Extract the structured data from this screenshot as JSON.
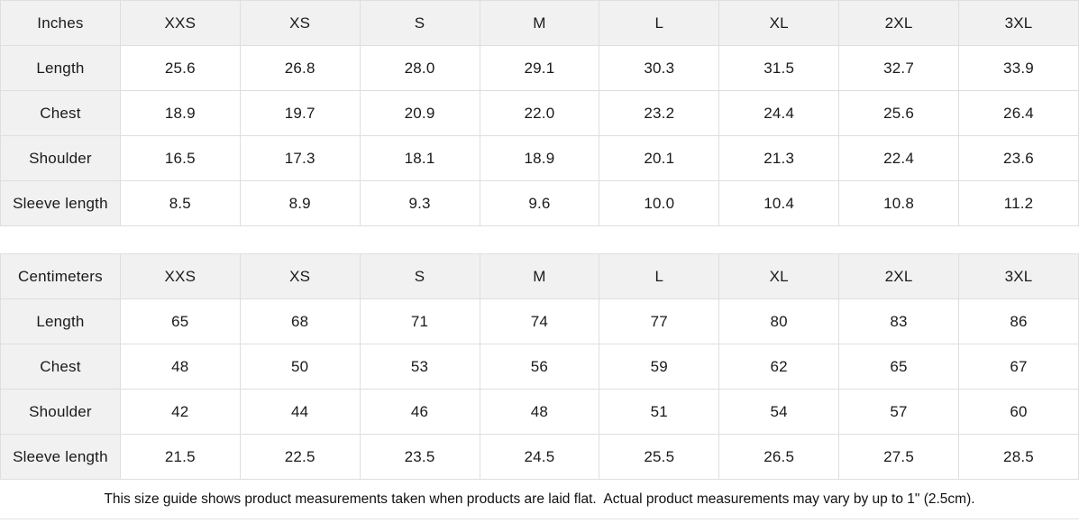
{
  "colors": {
    "header_bg": "#f1f1f1",
    "border": "#dedede",
    "text": "#1a1a1a"
  },
  "tables": [
    {
      "unit_label": "Inches",
      "columns": [
        "XXS",
        "XS",
        "S",
        "M",
        "L",
        "XL",
        "2XL",
        "3XL"
      ],
      "rows": [
        {
          "label": "Length",
          "values": [
            "25.6",
            "26.8",
            "28.0",
            "29.1",
            "30.3",
            "31.5",
            "32.7",
            "33.9"
          ]
        },
        {
          "label": "Chest",
          "values": [
            "18.9",
            "19.7",
            "20.9",
            "22.0",
            "23.2",
            "24.4",
            "25.6",
            "26.4"
          ]
        },
        {
          "label": "Shoulder",
          "values": [
            "16.5",
            "17.3",
            "18.1",
            "18.9",
            "20.1",
            "21.3",
            "22.4",
            "23.6"
          ]
        },
        {
          "label": "Sleeve length",
          "values": [
            "8.5",
            "8.9",
            "9.3",
            "9.6",
            "10.0",
            "10.4",
            "10.8",
            "11.2"
          ]
        }
      ]
    },
    {
      "unit_label": "Centimeters",
      "columns": [
        "XXS",
        "XS",
        "S",
        "M",
        "L",
        "XL",
        "2XL",
        "3XL"
      ],
      "rows": [
        {
          "label": "Length",
          "values": [
            "65",
            "68",
            "71",
            "74",
            "77",
            "80",
            "83",
            "86"
          ]
        },
        {
          "label": "Chest",
          "values": [
            "48",
            "50",
            "53",
            "56",
            "59",
            "62",
            "65",
            "67"
          ]
        },
        {
          "label": "Shoulder",
          "values": [
            "42",
            "44",
            "46",
            "48",
            "51",
            "54",
            "57",
            "60"
          ]
        },
        {
          "label": "Sleeve length",
          "values": [
            "21.5",
            "22.5",
            "23.5",
            "24.5",
            "25.5",
            "26.5",
            "27.5",
            "28.5"
          ]
        }
      ]
    }
  ],
  "footer": {
    "note": "This size guide shows product measurements taken when products are laid flat.  Actual product measurements may vary by up to 1\" (2.5cm)."
  }
}
